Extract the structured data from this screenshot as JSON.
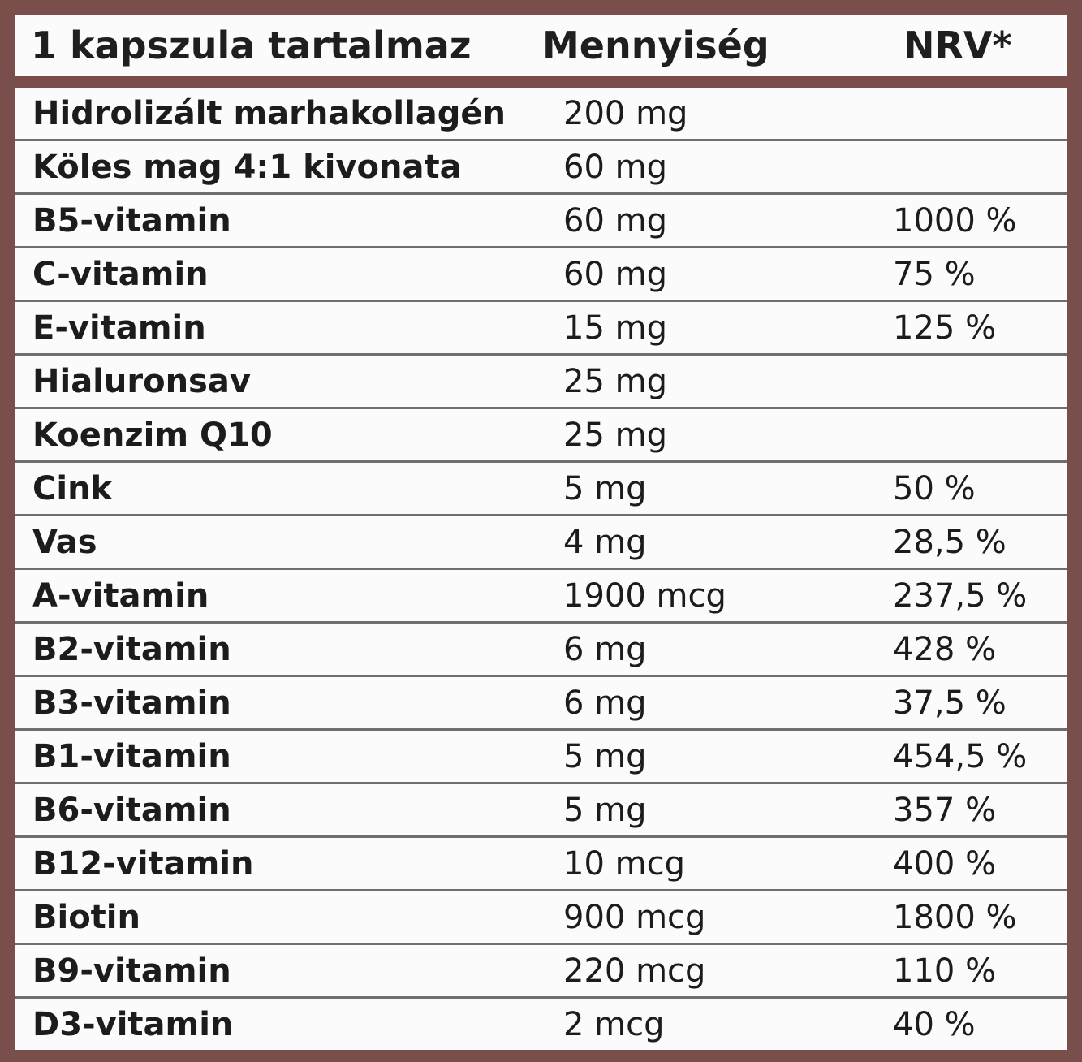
{
  "header": {
    "ingredient": "1 kapszula tartalmaz",
    "amount": "Mennyiség",
    "nrv": "NRV*"
  },
  "rows": [
    {
      "name": "Hidrolizált marhakollagén",
      "amount": "200 mg",
      "nrv": ""
    },
    {
      "name": "Köles mag 4:1 kivonata",
      "amount": "60 mg",
      "nrv": ""
    },
    {
      "name": "B5-vitamin",
      "amount": "60 mg",
      "nrv": "1000 %"
    },
    {
      "name": "C-vitamin",
      "amount": "60 mg",
      "nrv": "75 %"
    },
    {
      "name": "E-vitamin",
      "amount": "15 mg",
      "nrv": "125 %"
    },
    {
      "name": "Hialuronsav",
      "amount": "25 mg",
      "nrv": ""
    },
    {
      "name": "Koenzim Q10",
      "amount": "25 mg",
      "nrv": ""
    },
    {
      "name": "Cink",
      "amount": "5 mg",
      "nrv": "50 %"
    },
    {
      "name": "Vas",
      "amount": "4 mg",
      "nrv": "28,5 %"
    },
    {
      "name": "A-vitamin",
      "amount": "1900 mcg",
      "nrv": "237,5 %"
    },
    {
      "name": "B2-vitamin",
      "amount": "6 mg",
      "nrv": "428 %"
    },
    {
      "name": "B3-vitamin",
      "amount": "6 mg",
      "nrv": "37,5 %"
    },
    {
      "name": "B1-vitamin",
      "amount": "5 mg",
      "nrv": "454,5 %"
    },
    {
      "name": "B6-vitamin",
      "amount": "5 mg",
      "nrv": "357 %"
    },
    {
      "name": "B12-vitamin",
      "amount": "10 mcg",
      "nrv": "400 %"
    },
    {
      "name": "Biotin",
      "amount": "900 mcg",
      "nrv": "1800 %"
    },
    {
      "name": "B9-vitamin",
      "amount": "220 mcg",
      "nrv": "110 %"
    },
    {
      "name": "D3-vitamin",
      "amount": "2 mcg",
      "nrv": "40 %"
    }
  ]
}
